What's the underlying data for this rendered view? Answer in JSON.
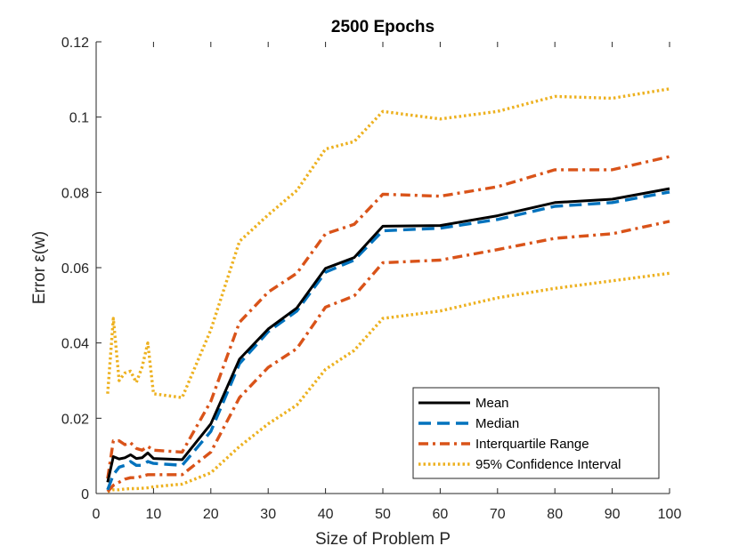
{
  "chart_data": {
    "type": "line",
    "title": "2500 Epochs",
    "xlabel": "Size of Problem P",
    "ylabel": "Error ε(w)",
    "xlim": [
      0,
      100
    ],
    "ylim": [
      0,
      0.12
    ],
    "xticks": [
      0,
      10,
      20,
      30,
      40,
      50,
      60,
      70,
      80,
      90,
      100
    ],
    "yticks": [
      0,
      0.02,
      0.04,
      0.06,
      0.08,
      0.1,
      0.12
    ],
    "xtick_labels": [
      "0",
      "10",
      "20",
      "30",
      "40",
      "50",
      "60",
      "70",
      "80",
      "90",
      "100"
    ],
    "ytick_labels": [
      "0",
      "0.02",
      "0.04",
      "0.06",
      "0.08",
      "0.1",
      "0.12"
    ],
    "grid": false,
    "legend_position": "bottom-right",
    "series": [
      {
        "name": "95% Confidence Interval",
        "legend": "95% Confidence Interval",
        "color": "#EDB120",
        "dash": "dotted",
        "x": [
          2,
          3,
          4,
          5,
          6,
          7,
          8,
          9,
          10,
          15,
          20,
          25,
          30,
          35,
          40,
          45,
          50,
          60,
          70,
          80,
          90,
          100
        ],
        "y": [
          0.0265,
          0.0465,
          0.03,
          0.032,
          0.0325,
          0.0295,
          0.0335,
          0.04,
          0.0265,
          0.0255,
          0.0435,
          0.067,
          0.074,
          0.0805,
          0.0915,
          0.0935,
          0.1015,
          0.0995,
          0.1015,
          0.1055,
          0.105,
          0.1075
        ],
        "lower": false
      },
      {
        "name": "95% Confidence Interval lower",
        "legend": "",
        "color": "#EDB120",
        "dash": "dotted",
        "x": [
          2,
          3,
          4,
          5,
          6,
          7,
          8,
          9,
          10,
          15,
          20,
          25,
          30,
          35,
          40,
          45,
          50,
          60,
          70,
          80,
          90,
          100
        ],
        "y": [
          0.0005,
          0.001,
          0.001,
          0.0012,
          0.0013,
          0.0013,
          0.0014,
          0.0015,
          0.0018,
          0.0025,
          0.0055,
          0.0125,
          0.0185,
          0.0235,
          0.033,
          0.038,
          0.0465,
          0.0485,
          0.052,
          0.0545,
          0.0565,
          0.0585
        ],
        "lower": true
      },
      {
        "name": "Interquartile Range",
        "legend": "Interquartile Range",
        "color": "#D95319",
        "dash": "dashdot",
        "x": [
          2,
          3,
          4,
          5,
          6,
          7,
          8,
          9,
          10,
          15,
          20,
          25,
          30,
          35,
          40,
          45,
          50,
          60,
          70,
          80,
          90,
          100
        ],
        "y": [
          0.004,
          0.014,
          0.014,
          0.013,
          0.0135,
          0.012,
          0.0115,
          0.0125,
          0.0115,
          0.011,
          0.0245,
          0.0455,
          0.0535,
          0.0585,
          0.069,
          0.0715,
          0.0795,
          0.079,
          0.0815,
          0.086,
          0.086,
          0.0895
        ],
        "lower": false
      },
      {
        "name": "Interquartile Range lower",
        "legend": "",
        "color": "#D95319",
        "dash": "dashdot",
        "x": [
          2,
          3,
          4,
          5,
          6,
          7,
          8,
          9,
          10,
          15,
          20,
          25,
          30,
          35,
          40,
          45,
          50,
          60,
          70,
          80,
          90,
          100
        ],
        "y": [
          0.0005,
          0.0022,
          0.003,
          0.0038,
          0.0042,
          0.0042,
          0.0046,
          0.005,
          0.005,
          0.005,
          0.011,
          0.0255,
          0.0335,
          0.0385,
          0.0495,
          0.0525,
          0.0613,
          0.062,
          0.0648,
          0.0678,
          0.069,
          0.0723
        ],
        "lower": true
      },
      {
        "name": "Median",
        "legend": "Median",
        "color": "#0072BD",
        "dash": "dashed",
        "x": [
          2,
          3,
          4,
          5,
          6,
          7,
          8,
          9,
          10,
          15,
          20,
          25,
          30,
          35,
          40,
          45,
          50,
          60,
          70,
          80,
          90,
          100
        ],
        "y": [
          0.001,
          0.005,
          0.007,
          0.0075,
          0.0085,
          0.0075,
          0.0075,
          0.0085,
          0.008,
          0.0075,
          0.0165,
          0.0345,
          0.043,
          0.0485,
          0.0588,
          0.062,
          0.0698,
          0.0705,
          0.0728,
          0.0763,
          0.0773,
          0.0801
        ],
        "lower": false
      },
      {
        "name": "Mean",
        "legend": "Mean",
        "color": "#000000",
        "dash": "solid",
        "x": [
          2,
          3,
          4,
          5,
          6,
          7,
          8,
          9,
          10,
          15,
          20,
          25,
          30,
          35,
          40,
          45,
          50,
          60,
          70,
          80,
          90,
          100
        ],
        "y": [
          0.003,
          0.0098,
          0.0092,
          0.0095,
          0.0103,
          0.0093,
          0.0095,
          0.0108,
          0.0093,
          0.009,
          0.0185,
          0.0357,
          0.0437,
          0.0493,
          0.0598,
          0.0627,
          0.071,
          0.0712,
          0.0738,
          0.0773,
          0.0782,
          0.081
        ],
        "lower": false
      }
    ]
  }
}
